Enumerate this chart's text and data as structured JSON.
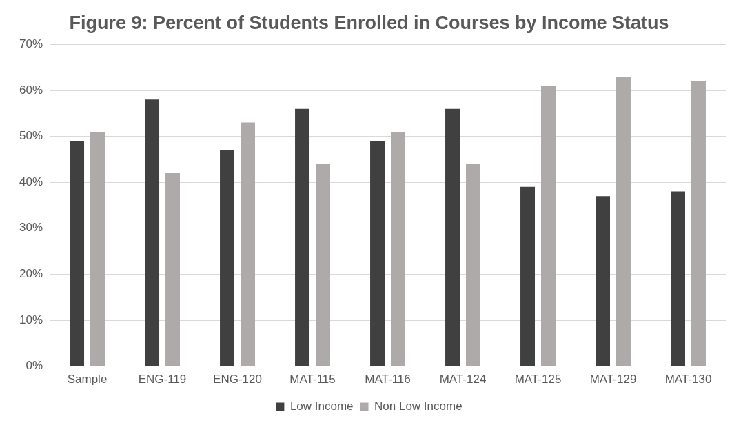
{
  "chart_data": {
    "type": "bar",
    "title": "Figure 9: Percent of Students Enrolled in Courses by Income Status",
    "categories": [
      "Sample",
      "ENG-119",
      "ENG-120",
      "MAT-115",
      "MAT-116",
      "MAT-124",
      "MAT-125",
      "MAT-129",
      "MAT-130"
    ],
    "series": [
      {
        "name": "Low Income",
        "color": "#404040",
        "values": [
          49,
          58,
          47,
          56,
          49,
          56,
          39,
          37,
          38
        ]
      },
      {
        "name": "Non Low Income",
        "color": "#aeaaaa",
        "values": [
          51,
          42,
          53,
          44,
          51,
          44,
          61,
          63,
          62
        ]
      }
    ],
    "ylim": [
      0,
      70
    ],
    "yticks": [
      {
        "value": 0,
        "label": "0%"
      },
      {
        "value": 10,
        "label": "10%"
      },
      {
        "value": 20,
        "label": "20%"
      },
      {
        "value": 30,
        "label": "30%"
      },
      {
        "value": 40,
        "label": "40%"
      },
      {
        "value": 50,
        "label": "50%"
      },
      {
        "value": 60,
        "label": "60%"
      },
      {
        "value": 70,
        "label": "70%"
      }
    ],
    "grid": "y",
    "legend": "bottom"
  }
}
